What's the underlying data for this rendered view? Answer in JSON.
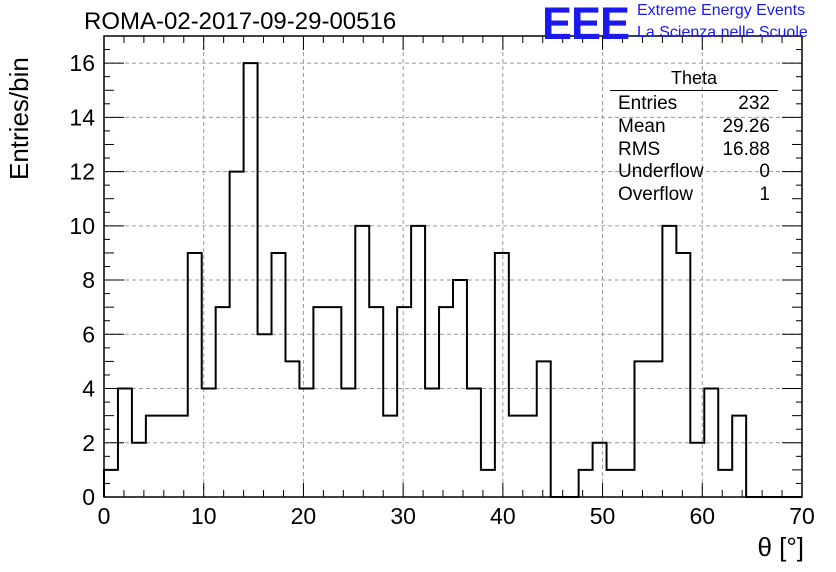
{
  "header": {
    "title": "ROMA-02-2017-09-29-00516",
    "brand_logo": "EEE",
    "brand_line1": "Extreme Energy Events",
    "brand_line2": "La Scienza nelle Scuole",
    "brand_color": "#1a1aee"
  },
  "stats": {
    "title": "Theta",
    "rows": [
      {
        "label": "Entries",
        "value": "232"
      },
      {
        "label": "Mean",
        "value": "29.26"
      },
      {
        "label": "RMS",
        "value": "16.88"
      },
      {
        "label": "Underflow",
        "value": "0"
      },
      {
        "label": "Overflow",
        "value": "1"
      }
    ]
  },
  "chart_data": {
    "type": "bar",
    "style": "step-histogram",
    "xlabel": "θ [°]",
    "ylabel": "Entries/bin",
    "xlim": [
      0,
      70
    ],
    "ylim": [
      0,
      17
    ],
    "bin_width": 1.4,
    "bin_start": 0,
    "xticks": [
      0,
      10,
      20,
      30,
      40,
      50,
      60,
      70
    ],
    "yticks": [
      0,
      2,
      4,
      6,
      8,
      10,
      12,
      14,
      16
    ],
    "grid": true,
    "values": [
      1,
      4,
      2,
      3,
      3,
      3,
      9,
      4,
      7,
      12,
      16,
      6,
      9,
      5,
      4,
      7,
      7,
      4,
      10,
      7,
      3,
      7,
      10,
      4,
      7,
      8,
      4,
      1,
      9,
      3,
      3,
      5,
      0,
      0,
      1,
      2,
      1,
      1,
      5,
      5,
      10,
      9,
      2,
      4,
      1,
      3,
      0,
      0,
      0,
      0
    ],
    "line_color": "#000000"
  }
}
